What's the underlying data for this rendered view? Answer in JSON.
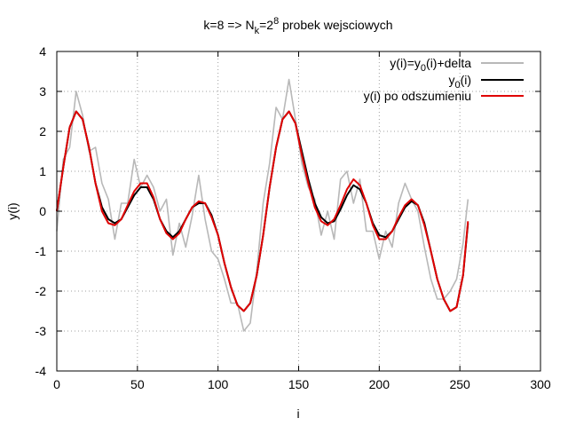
{
  "chart_data": {
    "type": "line",
    "title": "k=8 => N",
    "title_sub": "k",
    "title_mid": "=2",
    "title_sup": "8",
    "title_tail": " probek wejsciowych",
    "xlabel": "i",
    "ylabel": "y(i)",
    "xlim": [
      0,
      300
    ],
    "ylim": [
      -4,
      4
    ],
    "xticks": [
      0,
      50,
      100,
      150,
      200,
      250,
      300
    ],
    "yticks": [
      -4,
      -3,
      -2,
      -1,
      0,
      1,
      2,
      3,
      4
    ],
    "xtick_labels": [
      "0",
      "50",
      "100",
      "150",
      "200",
      "250",
      "300"
    ],
    "ytick_labels": [
      "-4",
      "-3",
      "-2",
      "-1",
      "0",
      "1",
      "2",
      "3",
      "4"
    ],
    "grid": true,
    "legend_position": "top-right",
    "legend": [
      {
        "text": "y(i)=y",
        "sub": "0",
        "tail": "(i)+delta"
      },
      {
        "text": "y",
        "sub": "0",
        "tail": "(i)"
      },
      {
        "text": "y(i) po odszumieniu",
        "sub": "",
        "tail": ""
      }
    ],
    "series": [
      {
        "key": "noisy",
        "color": "#b8b8b8",
        "width": 1.6,
        "x": [
          0,
          4,
          8,
          12,
          16,
          20,
          24,
          28,
          32,
          36,
          40,
          44,
          48,
          52,
          56,
          60,
          64,
          68,
          72,
          76,
          80,
          84,
          88,
          92,
          96,
          100,
          104,
          108,
          112,
          116,
          120,
          124,
          128,
          132,
          136,
          140,
          144,
          148,
          152,
          156,
          160,
          164,
          168,
          172,
          176,
          180,
          184,
          188,
          192,
          196,
          200,
          204,
          208,
          212,
          216,
          220,
          224,
          228,
          232,
          236,
          240,
          244,
          248,
          252,
          255
        ],
        "y": [
          -0.5,
          1.3,
          1.6,
          3.0,
          2.4,
          1.5,
          1.6,
          0.7,
          0.3,
          -0.7,
          0.2,
          0.2,
          1.3,
          0.6,
          0.9,
          0.6,
          0.0,
          0.3,
          -1.1,
          -0.3,
          -0.9,
          -0.1,
          0.9,
          -0.2,
          -1.0,
          -1.2,
          -1.7,
          -2.3,
          -2.3,
          -3.0,
          -2.8,
          -1.5,
          0.2,
          1.2,
          2.6,
          2.3,
          3.3,
          2.3,
          1.2,
          0.6,
          0.3,
          -0.6,
          0.0,
          -0.7,
          0.8,
          1.0,
          0.2,
          0.8,
          -0.5,
          -0.5,
          -1.2,
          -0.5,
          -0.9,
          0.2,
          0.7,
          0.3,
          0.0,
          -0.9,
          -1.7,
          -2.2,
          -2.2,
          -2.0,
          -1.7,
          -0.8,
          0.3
        ]
      },
      {
        "key": "clean",
        "color": "#000000",
        "width": 2,
        "x": [
          0,
          4,
          8,
          12,
          16,
          20,
          24,
          28,
          32,
          36,
          40,
          44,
          48,
          52,
          56,
          60,
          64,
          68,
          72,
          76,
          80,
          84,
          88,
          92,
          96,
          100,
          104,
          108,
          112,
          116,
          120,
          124,
          128,
          132,
          136,
          140,
          144,
          148,
          152,
          156,
          160,
          164,
          168,
          172,
          176,
          180,
          184,
          188,
          192,
          196,
          200,
          204,
          208,
          212,
          216,
          220,
          224,
          228,
          232,
          236,
          240,
          244,
          248,
          252,
          255
        ],
        "y": [
          0.0,
          1.1,
          2.1,
          2.5,
          2.3,
          1.6,
          0.7,
          0.1,
          -0.2,
          -0.3,
          -0.2,
          0.1,
          0.4,
          0.6,
          0.6,
          0.3,
          -0.2,
          -0.5,
          -0.65,
          -0.5,
          -0.2,
          0.1,
          0.2,
          0.2,
          -0.1,
          -0.6,
          -1.3,
          -1.9,
          -2.35,
          -2.5,
          -2.3,
          -1.6,
          -0.6,
          0.6,
          1.6,
          2.3,
          2.5,
          2.2,
          1.5,
          0.8,
          0.2,
          -0.15,
          -0.3,
          -0.25,
          0.05,
          0.4,
          0.65,
          0.55,
          0.2,
          -0.3,
          -0.6,
          -0.65,
          -0.5,
          -0.2,
          0.1,
          0.25,
          0.15,
          -0.3,
          -1.0,
          -1.7,
          -2.2,
          -2.5,
          -2.4,
          -1.6,
          -0.3
        ]
      },
      {
        "key": "denoised",
        "color": "#e00000",
        "width": 2,
        "x": [
          0,
          4,
          8,
          12,
          16,
          20,
          24,
          28,
          32,
          36,
          40,
          44,
          48,
          52,
          56,
          60,
          64,
          68,
          72,
          76,
          80,
          84,
          88,
          92,
          96,
          100,
          104,
          108,
          112,
          116,
          120,
          124,
          128,
          132,
          136,
          140,
          144,
          148,
          152,
          156,
          160,
          164,
          168,
          172,
          176,
          180,
          184,
          188,
          192,
          196,
          200,
          204,
          208,
          212,
          216,
          220,
          224,
          228,
          232,
          236,
          240,
          244,
          248,
          252,
          255
        ],
        "y": [
          0.0,
          1.1,
          2.1,
          2.5,
          2.3,
          1.6,
          0.7,
          0.0,
          -0.3,
          -0.35,
          -0.2,
          0.15,
          0.5,
          0.7,
          0.7,
          0.35,
          -0.2,
          -0.55,
          -0.7,
          -0.55,
          -0.2,
          0.1,
          0.25,
          0.2,
          -0.15,
          -0.6,
          -1.3,
          -1.9,
          -2.35,
          -2.5,
          -2.3,
          -1.6,
          -0.6,
          0.6,
          1.6,
          2.3,
          2.5,
          2.2,
          1.4,
          0.7,
          0.1,
          -0.25,
          -0.35,
          -0.2,
          0.15,
          0.55,
          0.8,
          0.65,
          0.2,
          -0.35,
          -0.7,
          -0.7,
          -0.5,
          -0.15,
          0.15,
          0.3,
          0.15,
          -0.35,
          -1.0,
          -1.7,
          -2.2,
          -2.5,
          -2.4,
          -1.6,
          -0.25
        ]
      }
    ]
  }
}
